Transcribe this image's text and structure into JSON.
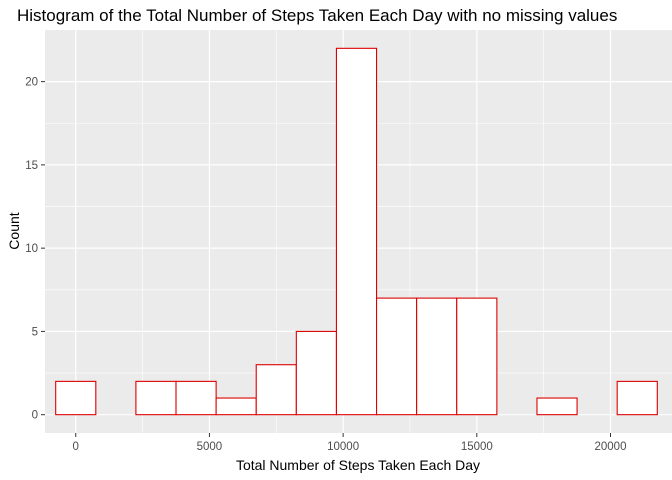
{
  "chart_data": {
    "type": "bar",
    "title": "Histogram of the Total Number of Steps Taken Each Day with no missing values",
    "xlabel": "Total Number of Steps Taken Each Day",
    "ylabel": "Count",
    "bin_width": 1500,
    "bins": [
      {
        "x": 0,
        "count": 2
      },
      {
        "x": 1500,
        "count": 0
      },
      {
        "x": 3000,
        "count": 2
      },
      {
        "x": 4500,
        "count": 2
      },
      {
        "x": 6000,
        "count": 1
      },
      {
        "x": 7500,
        "count": 3
      },
      {
        "x": 9000,
        "count": 5
      },
      {
        "x": 10500,
        "count": 22
      },
      {
        "x": 12000,
        "count": 7
      },
      {
        "x": 13500,
        "count": 7
      },
      {
        "x": 15000,
        "count": 7
      },
      {
        "x": 16500,
        "count": 0
      },
      {
        "x": 18000,
        "count": 1
      },
      {
        "x": 19500,
        "count": 0
      },
      {
        "x": 21000,
        "count": 2
      }
    ],
    "xlim": [
      -1150,
      22300
    ],
    "ylim": [
      -1.1,
      23.1
    ],
    "x_ticks": [
      0,
      5000,
      10000,
      15000,
      20000
    ],
    "y_ticks": [
      0,
      5,
      10,
      15,
      20
    ],
    "grid": true,
    "colors": {
      "panel": "#ebebeb",
      "grid": "#ffffff",
      "bar_fill": "#ffffff",
      "bar_outline": "#dd0000"
    }
  }
}
